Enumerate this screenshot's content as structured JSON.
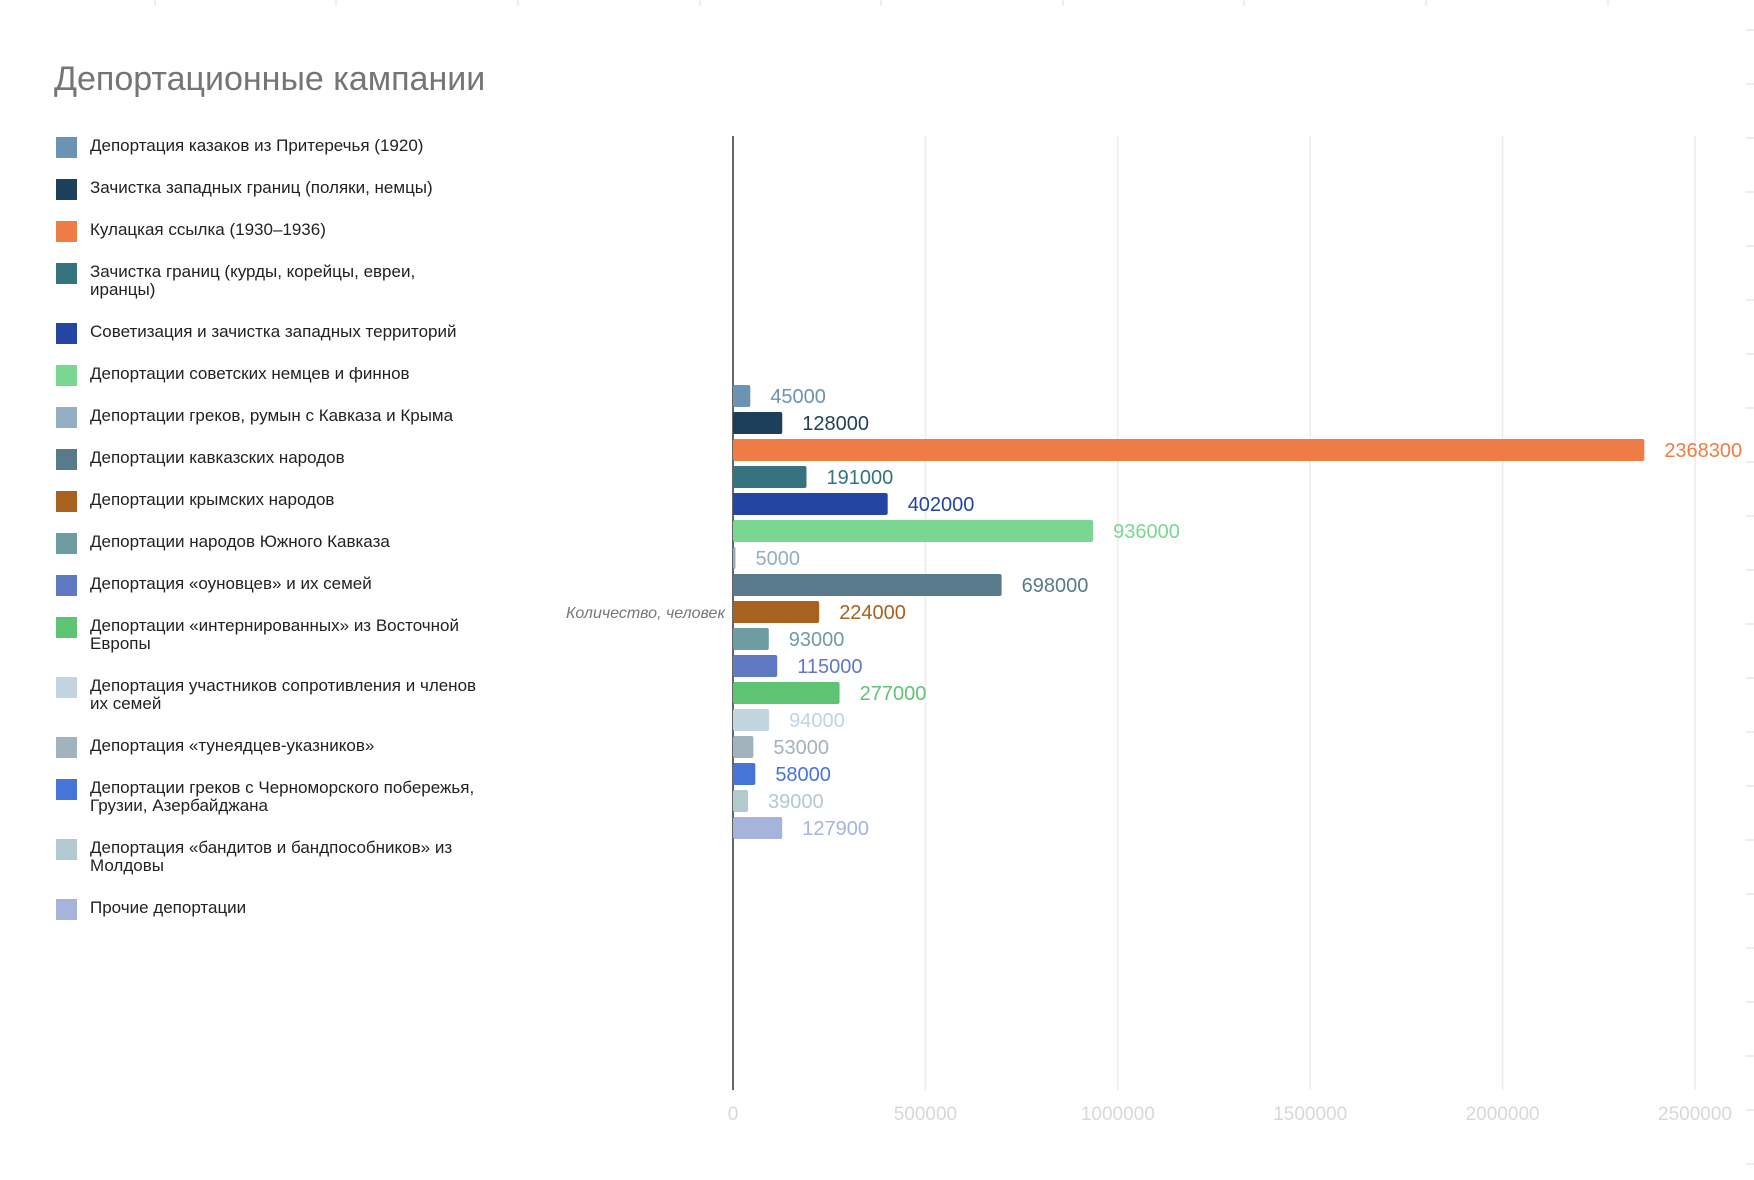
{
  "chart_data": {
    "type": "bar",
    "orientation": "horizontal",
    "title": "Депортационные кампании",
    "axis_title": "Количество, человек",
    "xlim": [
      0,
      2500000
    ],
    "x_ticks": [
      "0",
      "500000",
      "1000000",
      "1500000",
      "2000000",
      "2500000"
    ],
    "grid": true,
    "legend_position": "left",
    "series": [
      {
        "name": "Депортация казаков из Притеречья (1920)",
        "value": 45000,
        "label": "45000",
        "color": "#6b93b3"
      },
      {
        "name": "Зачистка западных границ (поляки, немцы)",
        "value": 128000,
        "label": "128000",
        "color": "#1e3f5a"
      },
      {
        "name": "Кулацкая ссылка (1930–1936)",
        "value": 2368300,
        "label": "2368300",
        "color": "#ef7c45"
      },
      {
        "name": "Зачистка границ (курды, корейцы, евреи, иранцы)",
        "value": 191000,
        "label": "191000",
        "color": "#35737f"
      },
      {
        "name": "Советизация и зачистка западных территорий",
        "value": 402000,
        "label": "402000",
        "color": "#2445a1"
      },
      {
        "name": "Депортации советских немцев и финнов",
        "value": 936000,
        "label": "936000",
        "color": "#7ad793"
      },
      {
        "name": "Депортации греков, румын с Кавказа и Крыма",
        "value": 5000,
        "label": "5000",
        "color": "#92afc4"
      },
      {
        "name": "Депортации кавказских народов",
        "value": 698000,
        "label": "698000",
        "color": "#587a8b"
      },
      {
        "name": "Депортации крымских народов",
        "value": 224000,
        "label": "224000",
        "color": "#a9611f"
      },
      {
        "name": "Депортации народов Южного Кавказа",
        "value": 93000,
        "label": "93000",
        "color": "#6d9da3"
      },
      {
        "name": "Депортация «оуновцев» и их семей",
        "value": 115000,
        "label": "115000",
        "color": "#6179c2"
      },
      {
        "name": "Депортации «интернированных» из Восточной Европы",
        "value": 277000,
        "label": "277000",
        "color": "#5ec473"
      },
      {
        "name": "Депортация участников сопротивления и членов их семей",
        "value": 94000,
        "label": "94000",
        "color": "#c2d4df"
      },
      {
        "name": "Депортация «тунеядцев-указников»",
        "value": 53000,
        "label": "53000",
        "color": "#a1b3bd"
      },
      {
        "name": "Депортации греков с Черноморского побережья, Грузии, Азербайджана",
        "value": 58000,
        "label": "58000",
        "color": "#4675d7"
      },
      {
        "name": "Депортация «бандитов и бандпособников» из Молдовы",
        "value": 39000,
        "label": "39000",
        "color": "#b1c9cf"
      },
      {
        "name": "Прочие депортации",
        "value": 127900,
        "label": "127900",
        "color": "#a6b4dc"
      }
    ]
  }
}
